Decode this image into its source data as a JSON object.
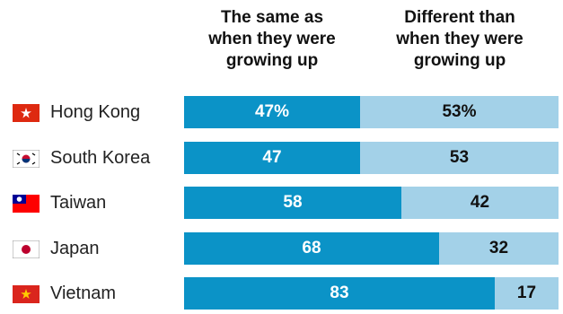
{
  "headers": {
    "same": "The same as\nwhen they were\ngrowing up",
    "different": "Different than\nwhen they were\ngrowing up"
  },
  "colors": {
    "same": "#0b93c7",
    "different": "#a3d1e8"
  },
  "rows": [
    {
      "country": "Hong Kong",
      "flag": "hong-kong-flag",
      "same_label": "47%",
      "diff_label": "53%"
    },
    {
      "country": "South Korea",
      "flag": "south-korea-flag",
      "same_label": "47",
      "diff_label": "53"
    },
    {
      "country": "Taiwan",
      "flag": "taiwan-flag",
      "same_label": "58",
      "diff_label": "42"
    },
    {
      "country": "Japan",
      "flag": "japan-flag",
      "same_label": "68",
      "diff_label": "32"
    },
    {
      "country": "Vietnam",
      "flag": "vietnam-flag",
      "same_label": "83",
      "diff_label": "17"
    }
  ],
  "chart_data": {
    "type": "bar",
    "orientation": "horizontal",
    "stacked": true,
    "categories": [
      "Hong Kong",
      "South Korea",
      "Taiwan",
      "Japan",
      "Vietnam"
    ],
    "series": [
      {
        "name": "The same as when they were growing up",
        "values": [
          47,
          47,
          58,
          68,
          83
        ]
      },
      {
        "name": "Different than when they were growing up",
        "values": [
          53,
          53,
          42,
          32,
          17
        ]
      }
    ],
    "xlim": [
      0,
      100
    ],
    "grid": false
  }
}
